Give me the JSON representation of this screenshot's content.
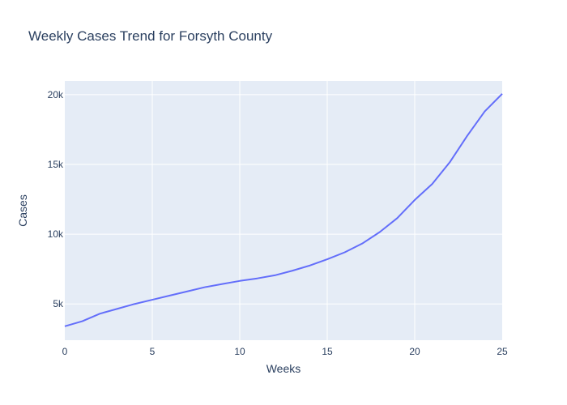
{
  "chart_data": {
    "type": "line",
    "title": "Weekly Cases Trend for Forsyth County",
    "xlabel": "Weeks",
    "ylabel": "Cases",
    "xlim": [
      0,
      25
    ],
    "ylim": [
      2400,
      20980
    ],
    "grid": true,
    "x_ticks": [
      0,
      5,
      10,
      15,
      20,
      25
    ],
    "x_tick_labels": [
      "0",
      "5",
      "10",
      "15",
      "20",
      "25"
    ],
    "y_ticks": [
      5000,
      10000,
      15000,
      20000
    ],
    "y_tick_labels": [
      "5k",
      "10k",
      "15k",
      "20k"
    ],
    "series": [
      {
        "color": "#636efa",
        "x": [
          0,
          1,
          2,
          3,
          4,
          5,
          6,
          7,
          8,
          9,
          10,
          11,
          12,
          13,
          14,
          15,
          16,
          17,
          18,
          19,
          20,
          21,
          22,
          23,
          24,
          25
        ],
        "y": [
          3400,
          3760,
          4300,
          4650,
          5000,
          5300,
          5600,
          5900,
          6200,
          6430,
          6650,
          6830,
          7050,
          7380,
          7750,
          8200,
          8700,
          9330,
          10150,
          11150,
          12450,
          13600,
          15150,
          17050,
          18800,
          20060
        ]
      }
    ],
    "colors": {
      "plot_background": "#e5ecf6",
      "grid": "#ffffff",
      "text": "#2a3f5f",
      "line": "#636efa"
    }
  }
}
